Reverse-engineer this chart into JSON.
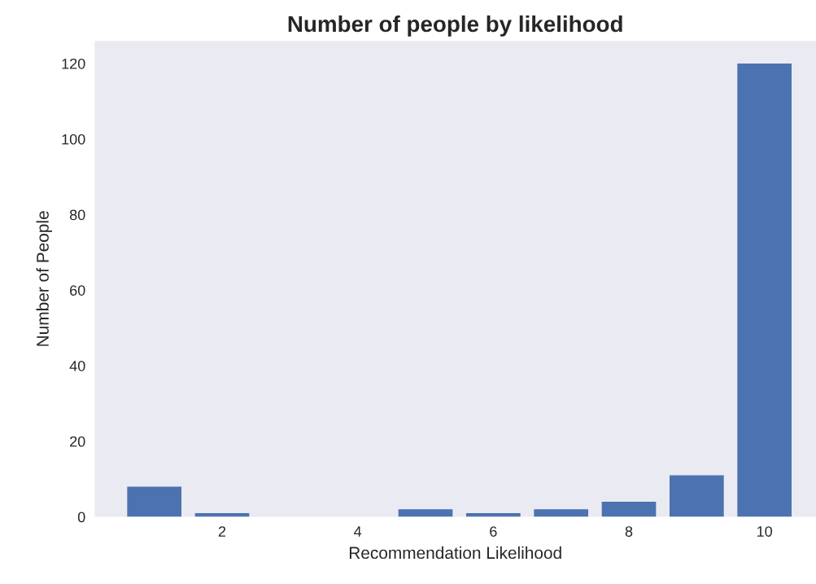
{
  "chart_data": {
    "type": "bar",
    "title": "Number of people by likelihood",
    "xlabel": "Recommendation Likelihood",
    "ylabel": "Number of People",
    "x": [
      1,
      2,
      3,
      4,
      5,
      6,
      7,
      8,
      9,
      10
    ],
    "values": [
      8,
      1,
      0,
      0,
      2,
      1,
      2,
      4,
      11,
      120
    ],
    "color": "#4c72b0",
    "xlim": [
      0.12,
      10.76
    ],
    "xticks": [
      2,
      4,
      6,
      8,
      10
    ],
    "ylim": [
      0,
      126
    ],
    "yticks": [
      0,
      20,
      40,
      60,
      80,
      100,
      120
    ],
    "grid": false
  }
}
